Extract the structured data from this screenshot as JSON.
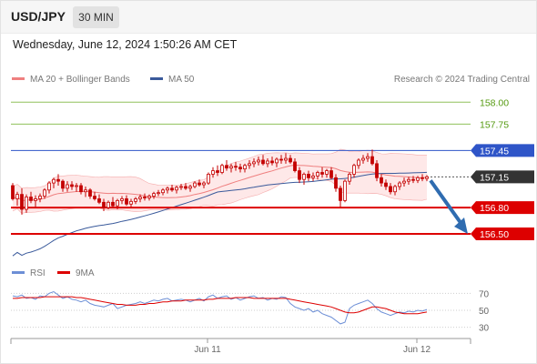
{
  "header": {
    "symbol": "USD/JPY",
    "timeframe": "30 MIN",
    "datetime": "Wednesday, June 12, 2024 1:50:26 AM CET"
  },
  "colors": {
    "candle_up": "#c40000",
    "candle_down": "#c40000",
    "ma20": "#ef7f7f",
    "bollinger_fill": "#fde0e0",
    "ma50": "#3a5a9b",
    "resistance_line": "#2f55c8",
    "support_line": "#dd0000",
    "target_line": "#8fc15a",
    "target_text": "#559a10",
    "current_price_bg": "#333333",
    "rsi_line": "#6d8fd6",
    "rsi_ma_line": "#dd0000",
    "arrow": "#2f6cb0"
  },
  "chart_data": [
    {
      "type": "candlestick",
      "legend": [
        {
          "label": "MA 20 + Bollinger Bands",
          "color": "#ef7f7f"
        },
        {
          "label": "MA 50",
          "color": "#3a5a9b"
        }
      ],
      "watermark": "Research © 2024 Trading Central",
      "ylim": [
        156.2,
        158.2
      ],
      "price_levels": [
        {
          "value": 158.0,
          "label": "158.00",
          "kind": "target"
        },
        {
          "value": 157.75,
          "label": "157.75",
          "kind": "target"
        },
        {
          "value": 157.45,
          "label": "157.45",
          "kind": "resistance"
        },
        {
          "value": 157.15,
          "label": "157.15",
          "kind": "current"
        },
        {
          "value": 156.8,
          "label": "156.80",
          "kind": "pivot"
        },
        {
          "value": 156.5,
          "label": "156.50",
          "kind": "support"
        }
      ],
      "arrow": {
        "from_price": 157.15,
        "to_price": 156.5,
        "direction": "down"
      },
      "ohlc": [
        [
          157.05,
          157.08,
          156.88,
          156.9
        ],
        [
          156.9,
          156.98,
          156.82,
          156.95
        ],
        [
          156.95,
          157.02,
          156.72,
          156.78
        ],
        [
          156.78,
          156.95,
          156.74,
          156.92
        ],
        [
          156.92,
          156.98,
          156.85,
          156.88
        ],
        [
          156.88,
          156.94,
          156.8,
          156.9
        ],
        [
          156.9,
          156.96,
          156.86,
          156.93
        ],
        [
          156.93,
          157.02,
          156.9,
          157.0
        ],
        [
          157.0,
          157.1,
          156.96,
          157.08
        ],
        [
          157.08,
          157.14,
          157.02,
          157.12
        ],
        [
          157.12,
          157.18,
          157.05,
          157.1
        ],
        [
          157.1,
          157.12,
          156.98,
          157.02
        ],
        [
          157.02,
          157.1,
          156.98,
          157.06
        ],
        [
          157.06,
          157.1,
          157.0,
          157.04
        ],
        [
          157.04,
          157.08,
          156.98,
          157.05
        ],
        [
          157.05,
          157.08,
          156.95,
          156.98
        ],
        [
          156.98,
          157.04,
          156.92,
          157.0
        ],
        [
          157.0,
          157.02,
          156.9,
          156.93
        ],
        [
          156.93,
          156.98,
          156.88,
          156.9
        ],
        [
          156.9,
          156.95,
          156.84,
          156.86
        ],
        [
          156.86,
          156.9,
          156.76,
          156.8
        ],
        [
          156.8,
          156.88,
          156.78,
          156.86
        ],
        [
          156.86,
          156.92,
          156.8,
          156.82
        ],
        [
          156.82,
          156.9,
          156.78,
          156.88
        ],
        [
          156.88,
          156.93,
          156.84,
          156.9
        ],
        [
          156.9,
          156.94,
          156.82,
          156.84
        ],
        [
          156.84,
          156.9,
          156.8,
          156.87
        ],
        [
          156.87,
          156.92,
          156.84,
          156.9
        ],
        [
          156.9,
          156.95,
          156.86,
          156.92
        ],
        [
          156.92,
          156.96,
          156.88,
          156.91
        ],
        [
          156.91,
          156.95,
          156.88,
          156.93
        ],
        [
          156.93,
          156.98,
          156.9,
          156.96
        ],
        [
          156.96,
          157.0,
          156.93,
          156.97
        ],
        [
          156.97,
          157.02,
          156.94,
          157.0
        ],
        [
          157.0,
          157.04,
          156.96,
          157.02
        ],
        [
          157.02,
          157.06,
          156.98,
          157.0
        ],
        [
          157.0,
          157.05,
          156.96,
          157.03
        ],
        [
          157.03,
          157.07,
          157.0,
          157.04
        ],
        [
          157.04,
          157.08,
          157.0,
          157.02
        ],
        [
          157.02,
          157.06,
          156.98,
          157.04
        ],
        [
          157.04,
          157.1,
          157.02,
          157.08
        ],
        [
          157.08,
          157.12,
          157.04,
          157.06
        ],
        [
          157.06,
          157.1,
          157.02,
          157.08
        ],
        [
          157.08,
          157.2,
          157.06,
          157.18
        ],
        [
          157.18,
          157.26,
          157.14,
          157.22
        ],
        [
          157.22,
          157.28,
          157.16,
          157.2
        ],
        [
          157.2,
          157.3,
          157.18,
          157.28
        ],
        [
          157.28,
          157.34,
          157.22,
          157.25
        ],
        [
          157.25,
          157.3,
          157.2,
          157.27
        ],
        [
          157.27,
          157.32,
          157.22,
          157.26
        ],
        [
          157.26,
          157.3,
          157.2,
          157.24
        ],
        [
          157.24,
          157.3,
          157.2,
          157.28
        ],
        [
          157.28,
          157.34,
          157.24,
          157.3
        ],
        [
          157.3,
          157.36,
          157.26,
          157.32
        ],
        [
          157.32,
          157.38,
          157.28,
          157.34
        ],
        [
          157.34,
          157.4,
          157.28,
          157.3
        ],
        [
          157.3,
          157.36,
          157.26,
          157.33
        ],
        [
          157.33,
          157.38,
          157.28,
          157.31
        ],
        [
          157.31,
          157.37,
          157.26,
          157.35
        ],
        [
          157.35,
          157.4,
          157.3,
          157.34
        ],
        [
          157.34,
          157.42,
          157.3,
          157.36
        ],
        [
          157.36,
          157.4,
          157.3,
          157.32
        ],
        [
          157.32,
          157.36,
          157.2,
          157.22
        ],
        [
          157.22,
          157.26,
          157.08,
          157.12
        ],
        [
          157.12,
          157.2,
          157.06,
          157.18
        ],
        [
          157.18,
          157.22,
          157.1,
          157.14
        ],
        [
          157.14,
          157.2,
          157.1,
          157.16
        ],
        [
          157.16,
          157.22,
          157.12,
          157.2
        ],
        [
          157.2,
          157.26,
          157.14,
          157.18
        ],
        [
          157.18,
          157.24,
          157.14,
          157.22
        ],
        [
          157.22,
          157.26,
          157.12,
          157.14
        ],
        [
          157.14,
          157.18,
          156.98,
          157.02
        ],
        [
          157.02,
          157.05,
          156.8,
          156.88
        ],
        [
          156.88,
          157.12,
          156.86,
          157.1
        ],
        [
          157.1,
          157.2,
          157.06,
          157.18
        ],
        [
          157.18,
          157.3,
          157.14,
          157.28
        ],
        [
          157.28,
          157.36,
          157.24,
          157.34
        ],
        [
          157.34,
          157.4,
          157.3,
          157.36
        ],
        [
          157.36,
          157.42,
          157.32,
          157.38
        ],
        [
          157.38,
          157.46,
          157.28,
          157.3
        ],
        [
          157.3,
          157.34,
          157.1,
          157.14
        ],
        [
          157.14,
          157.18,
          157.04,
          157.08
        ],
        [
          157.08,
          157.12,
          157.0,
          157.04
        ],
        [
          157.04,
          157.08,
          156.95,
          156.98
        ],
        [
          156.98,
          157.06,
          156.94,
          157.04
        ],
        [
          157.04,
          157.1,
          157.0,
          157.08
        ],
        [
          157.08,
          157.14,
          157.04,
          157.1
        ],
        [
          157.1,
          157.15,
          157.06,
          157.12
        ],
        [
          157.12,
          157.16,
          157.08,
          157.11
        ],
        [
          157.11,
          157.16,
          157.08,
          157.14
        ],
        [
          157.14,
          157.18,
          157.1,
          157.13
        ],
        [
          157.13,
          157.17,
          157.1,
          157.15
        ]
      ],
      "x_ticks": [
        {
          "label": "Jun 11",
          "index": 42
        },
        {
          "label": "Jun 12",
          "index": 88
        }
      ]
    },
    {
      "type": "line",
      "legend": [
        {
          "label": "RSI",
          "color": "#6d8fd6"
        },
        {
          "label": "9MA",
          "color": "#dd0000"
        }
      ],
      "ylim": [
        20,
        80
      ],
      "yticks": [
        {
          "value": 70,
          "label": "70"
        },
        {
          "value": 50,
          "label": "50"
        },
        {
          "value": 30,
          "label": "30"
        }
      ],
      "series": [
        {
          "name": "RSI",
          "values": [
            67,
            66,
            68,
            64,
            65,
            63,
            67,
            66,
            70,
            72,
            68,
            64,
            66,
            63,
            62,
            60,
            62,
            58,
            56,
            55,
            54,
            56,
            58,
            52,
            54,
            56,
            57,
            58,
            60,
            58,
            60,
            62,
            61,
            63,
            64,
            61,
            62,
            63,
            62,
            60,
            62,
            64,
            61,
            66,
            68,
            64,
            66,
            67,
            63,
            65,
            62,
            64,
            66,
            67,
            64,
            65,
            62,
            64,
            63,
            66,
            65,
            58,
            54,
            52,
            50,
            52,
            48,
            50,
            46,
            44,
            42,
            38,
            34,
            36,
            52,
            56,
            58,
            60,
            62,
            58,
            52,
            48,
            46,
            44,
            46,
            48,
            47,
            49,
            48,
            50,
            49,
            51
          ]
        },
        {
          "name": "9MA",
          "values": [
            64,
            64,
            65,
            65,
            65,
            65,
            65,
            66,
            66,
            66,
            66,
            66,
            66,
            66,
            65,
            65,
            64,
            63,
            62,
            61,
            60,
            59,
            58,
            57,
            57,
            56,
            56,
            56,
            57,
            57,
            58,
            58,
            59,
            60,
            60,
            61,
            61,
            61,
            62,
            62,
            62,
            62,
            62,
            63,
            63,
            64,
            64,
            64,
            64,
            65,
            65,
            65,
            65,
            64,
            64,
            64,
            64,
            64,
            64,
            64,
            64,
            63,
            62,
            61,
            60,
            59,
            58,
            57,
            56,
            55,
            54,
            52,
            50,
            48,
            47,
            47,
            48,
            50,
            52,
            54,
            54,
            53,
            52,
            50,
            48,
            47,
            46,
            46,
            46,
            46,
            47,
            48
          ]
        }
      ]
    }
  ]
}
